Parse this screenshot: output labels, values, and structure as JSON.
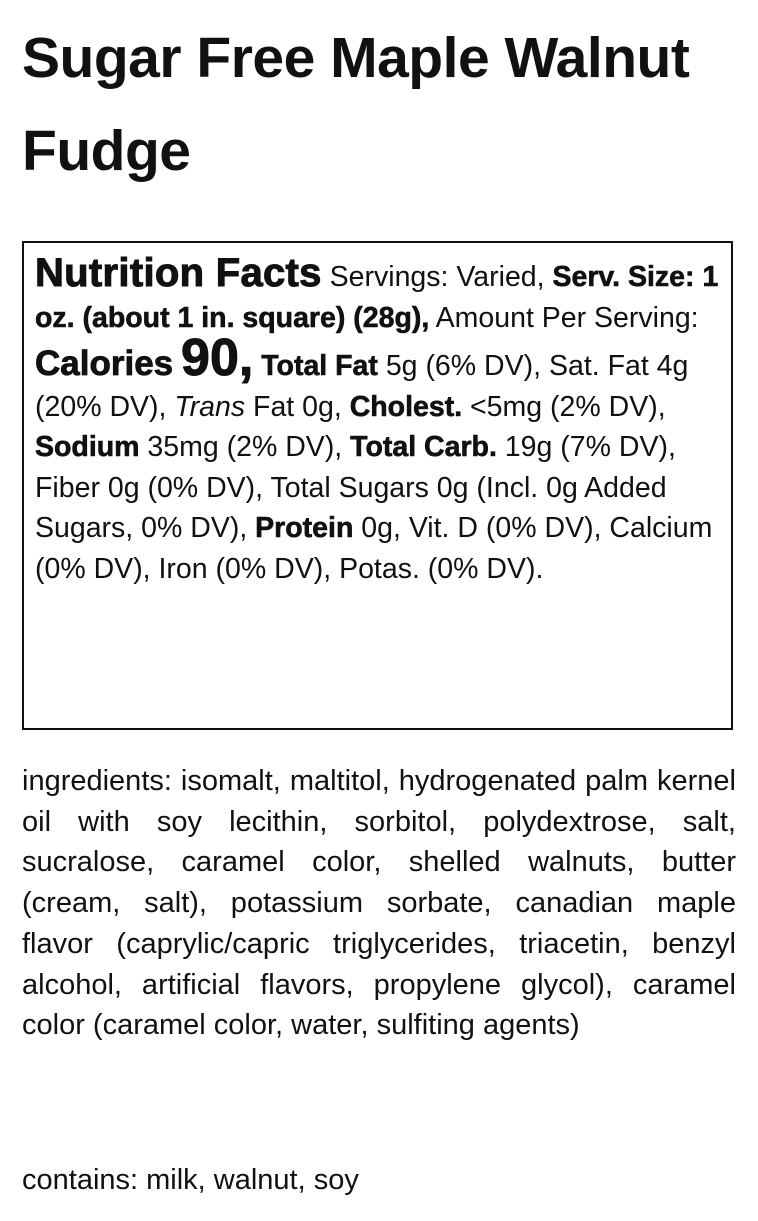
{
  "title": "Sugar Free Maple Walnut Fudge",
  "nutrition": {
    "heading": "Nutrition Facts",
    "servings": " Servings: Varied, ",
    "serving_size": "Serv. Size: 1 oz. (about 1 in. square) (28g),",
    "amount_per_serving": " Amount Per Serving: ",
    "calories_label": "Calories",
    "calories_value": "90,",
    "total_fat_label": "Total Fat",
    "total_fat_value": " 5g (6% DV), Sat. Fat 4g (20% DV), ",
    "trans_label": "Trans",
    "trans_value": " Fat 0g, ",
    "cholest_label": "Cholest.",
    "cholest_value": " <5mg (2% DV), ",
    "sodium_label": "Sodium",
    "sodium_value": " 35mg (2% DV), ",
    "carb_label": "Total Carb.",
    "carb_value": " 19g (7% DV), Fiber 0g (0% DV), Total Sugars 0g (Incl. 0g Added Sugars, 0% DV), ",
    "protein_label": "Protein",
    "protein_value": " 0g, Vit. D (0% DV), Calcium (0% DV), Iron (0% DV), Potas. (0% DV)."
  },
  "ingredients": "ingredients: isomalt, maltitol, hydrogenated palm kernel oil with soy lecithin, sorbitol, polydextrose, salt, sucralose, caramel color, shelled walnuts, butter (cream, salt), potassium sorbate, canadian maple flavor (caprylic/capric triglycerides, triacetin, benzyl alcohol, artificial flavors, propylene glycol), caramel color (caramel color, water, sulfiting agents)",
  "contains": "contains: milk, walnut, soy"
}
